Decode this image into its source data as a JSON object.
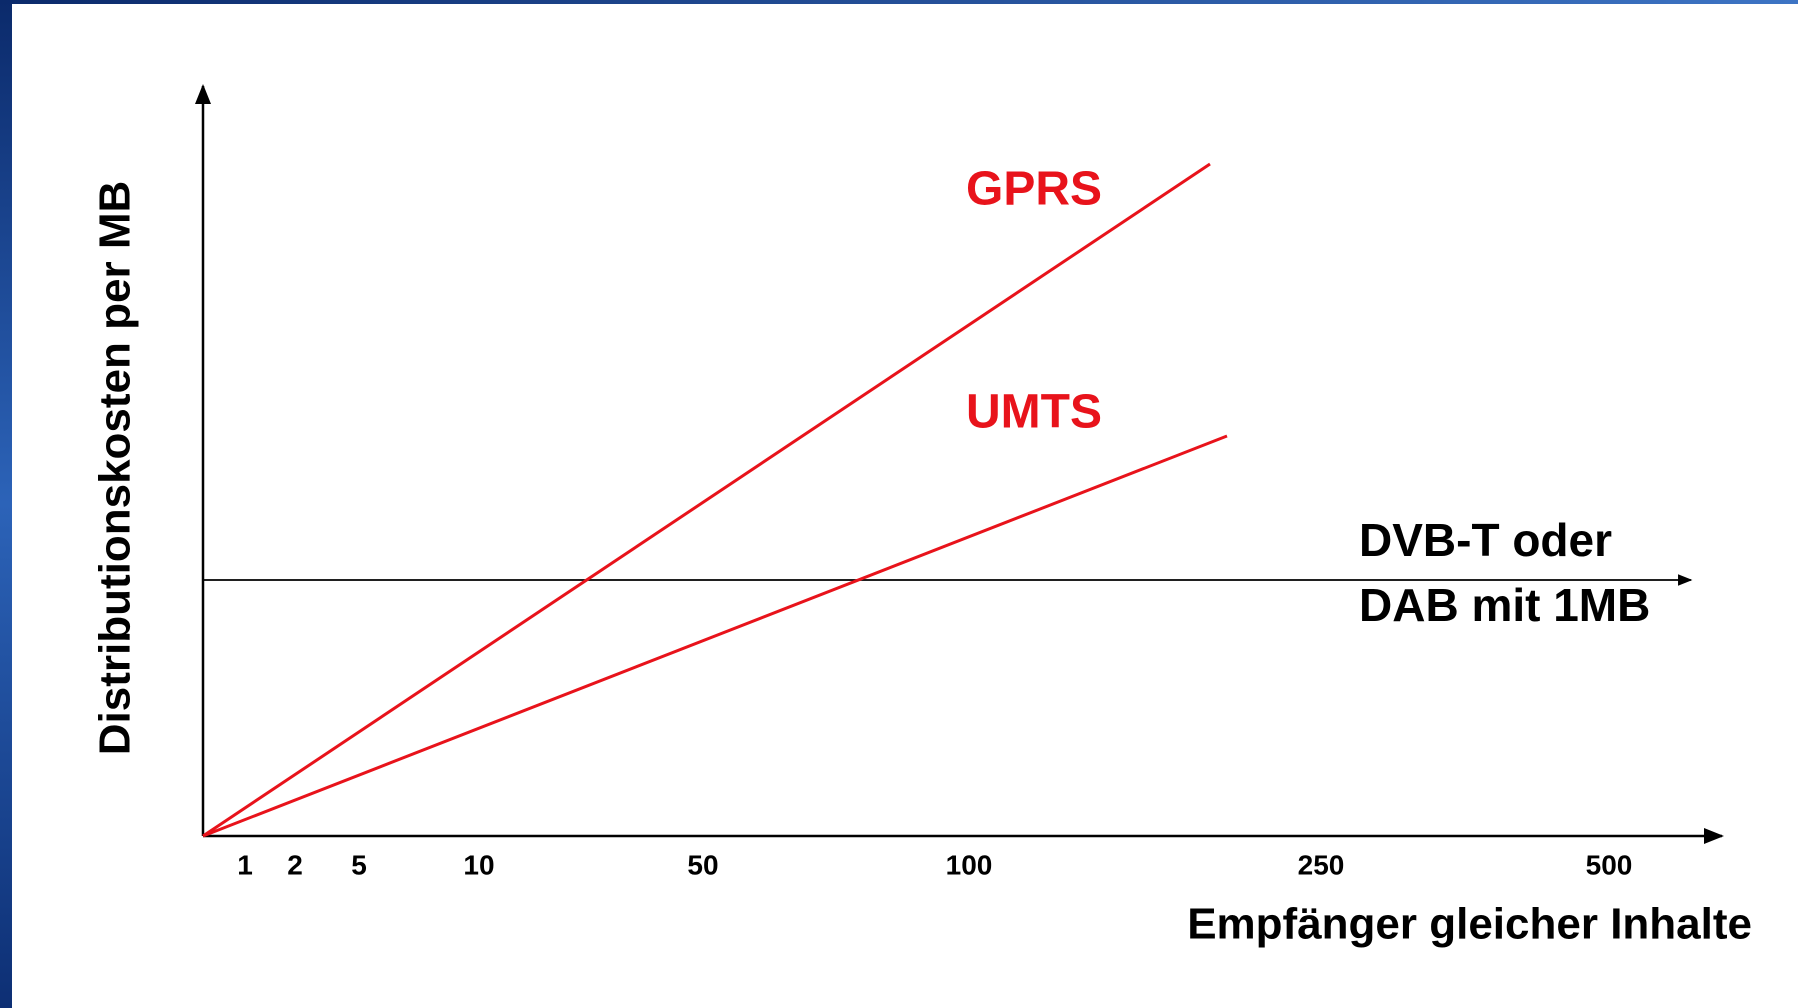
{
  "y_axis_label": "Distributionskosten per MB",
  "x_axis_label": "Empfänger gleicher Inhalte",
  "x_tick_labels": [
    1,
    2,
    5,
    10,
    50,
    100,
    250,
    500
  ],
  "lines": [
    {
      "label": "GPRS"
    },
    {
      "label": "UMTS"
    }
  ],
  "reference": {
    "label_lines": [
      "DVB-T oder",
      "DAB mit 1MB"
    ]
  }
}
